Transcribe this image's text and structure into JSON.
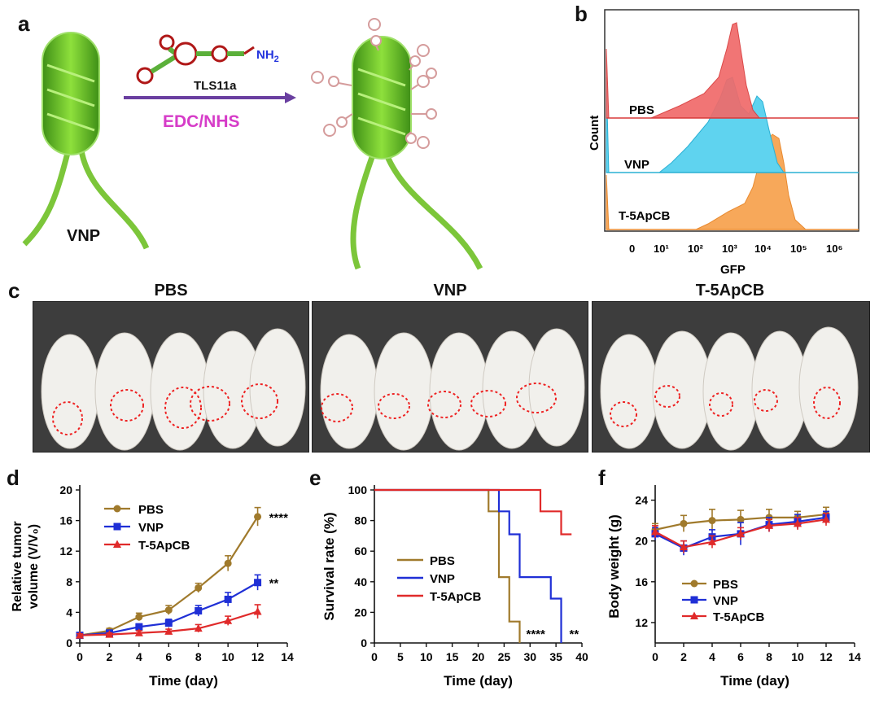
{
  "panels": {
    "a": {
      "letter": "a",
      "aptamer": "TLS11a",
      "amine": "NH",
      "amine_sub": "2",
      "reagent": "EDC/NHS",
      "bacteria_label": "VNP",
      "colors": {
        "arrow": "#6a3fa0",
        "reagent": "#d63cc8",
        "nh2": "#2233dd",
        "bacteria": "#6cc02a"
      }
    },
    "b": {
      "letter": "b",
      "ylabel": "Count",
      "xlabel": "GFP",
      "xticks": [
        "0",
        "10¹",
        "10²",
        "10³",
        "10⁴",
        "10⁵",
        "10⁶"
      ],
      "histograms": [
        {
          "name": "PBS",
          "color": "#f06a6a"
        },
        {
          "name": "VNP",
          "color": "#5fd3ef"
        },
        {
          "name": "T-5ApCB",
          "color": "#f7a85a"
        }
      ]
    },
    "c": {
      "letter": "c",
      "groups": [
        "PBS",
        "VNP",
        "T-5ApCB"
      ]
    },
    "d": {
      "letter": "d"
    },
    "e": {
      "letter": "e"
    },
    "f": {
      "letter": "f"
    }
  },
  "chart_data": [
    {
      "id": "d",
      "type": "line",
      "xlabel": "Time (day)",
      "ylabel_line1": "Relative tumor",
      "ylabel_line2": "volume (V/V₀)",
      "x": [
        0,
        2,
        4,
        6,
        8,
        10,
        12
      ],
      "xlim": [
        0,
        14
      ],
      "ylim": [
        0,
        20
      ],
      "xticks": [
        0,
        2,
        4,
        6,
        8,
        10,
        12,
        14
      ],
      "yticks": [
        0,
        4,
        8,
        12,
        16,
        20
      ],
      "series": [
        {
          "name": "PBS",
          "color": "#a07a2c",
          "marker": "circle",
          "values": [
            1.0,
            1.6,
            3.4,
            4.3,
            7.2,
            10.4,
            16.5
          ],
          "err": [
            0.2,
            0.3,
            0.5,
            0.6,
            0.6,
            1.0,
            1.2
          ],
          "sig": "****"
        },
        {
          "name": "VNP",
          "color": "#1f2fd6",
          "marker": "square",
          "values": [
            1.0,
            1.3,
            2.1,
            2.6,
            4.2,
            5.7,
            7.9
          ],
          "err": [
            0.2,
            0.3,
            0.4,
            0.5,
            0.7,
            0.9,
            1.0
          ],
          "sig": "**"
        },
        {
          "name": "T-5ApCB",
          "color": "#e02a2a",
          "marker": "triangle",
          "values": [
            1.0,
            1.1,
            1.3,
            1.5,
            1.9,
            2.9,
            4.1
          ],
          "err": [
            0.2,
            0.2,
            0.3,
            0.3,
            0.5,
            0.6,
            0.9
          ],
          "sig": ""
        }
      ]
    },
    {
      "id": "e",
      "type": "line",
      "step": true,
      "xlabel": "Time (day)",
      "ylabel": "Survival rate (%)",
      "xlim": [
        0,
        40
      ],
      "ylim": [
        0,
        100
      ],
      "xticks": [
        0,
        5,
        10,
        15,
        20,
        25,
        30,
        35,
        40
      ],
      "yticks": [
        0,
        20,
        40,
        60,
        80,
        100
      ],
      "series": [
        {
          "name": "PBS",
          "color": "#a07a2c",
          "points": [
            [
              0,
              100
            ],
            [
              22,
              100
            ],
            [
              22,
              86
            ],
            [
              24,
              86
            ],
            [
              24,
              43
            ],
            [
              26,
              43
            ],
            [
              26,
              14
            ],
            [
              28,
              14
            ],
            [
              28,
              0
            ]
          ]
        },
        {
          "name": "VNP",
          "color": "#1f2fd6",
          "points": [
            [
              0,
              100
            ],
            [
              24,
              100
            ],
            [
              24,
              86
            ],
            [
              26,
              86
            ],
            [
              26,
              71
            ],
            [
              28,
              71
            ],
            [
              28,
              43
            ],
            [
              34,
              43
            ],
            [
              34,
              29
            ],
            [
              36,
              29
            ],
            [
              36,
              0
            ]
          ]
        },
        {
          "name": "T-5ApCB",
          "color": "#e02a2a",
          "points": [
            [
              0,
              100
            ],
            [
              32,
              100
            ],
            [
              32,
              86
            ],
            [
              36,
              86
            ],
            [
              36,
              71
            ],
            [
              38,
              71
            ]
          ]
        }
      ],
      "annotations": [
        "****",
        "**"
      ]
    },
    {
      "id": "f",
      "type": "line",
      "xlabel": "Time (day)",
      "ylabel": "Body weight (g)",
      "x": [
        0,
        2,
        4,
        6,
        8,
        10,
        12
      ],
      "xlim": [
        0,
        14
      ],
      "ylim": [
        10,
        25
      ],
      "xticks": [
        0,
        2,
        4,
        6,
        8,
        10,
        12,
        14
      ],
      "yticks": [
        12,
        16,
        20,
        24
      ],
      "series": [
        {
          "name": "PBS",
          "color": "#a07a2c",
          "marker": "circle",
          "values": [
            21.1,
            21.7,
            22.0,
            22.1,
            22.3,
            22.3,
            22.6
          ],
          "err": [
            0.6,
            0.8,
            1.1,
            0.9,
            0.8,
            0.6,
            0.7
          ]
        },
        {
          "name": "VNP",
          "color": "#1f2fd6",
          "marker": "square",
          "values": [
            20.7,
            19.3,
            20.4,
            20.7,
            21.6,
            21.9,
            22.3
          ],
          "err": [
            0.6,
            0.7,
            0.7,
            1.1,
            0.7,
            0.7,
            0.6
          ]
        },
        {
          "name": "T-5ApCB",
          "color": "#e02a2a",
          "marker": "triangle",
          "values": [
            20.9,
            19.4,
            19.9,
            20.7,
            21.5,
            21.7,
            22.1
          ],
          "err": [
            0.6,
            0.6,
            0.6,
            0.6,
            0.6,
            0.6,
            0.6
          ]
        }
      ]
    }
  ]
}
